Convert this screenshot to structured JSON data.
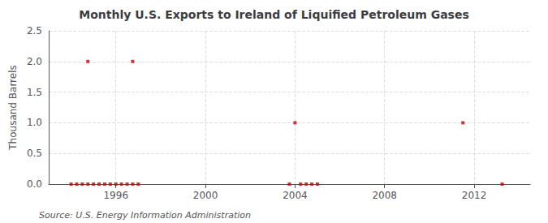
{
  "chart_data": {
    "type": "scatter",
    "title": "Monthly U.S. Exports to Ireland of Liquified Petroleum Gases",
    "ylabel": "Thousand Barrels",
    "annotation": "Source: U.S. Energy Information Administration",
    "x": [
      1994.75,
      1996.75,
      1994.0,
      1994.25,
      1994.5,
      1994.75,
      1995.0,
      1995.25,
      1995.5,
      1995.75,
      1996.0,
      1996.25,
      1996.5,
      1996.75,
      1997.0,
      2003.75,
      2004.0,
      2004.25,
      2004.5,
      2004.75,
      2005.0,
      2011.5,
      2013.25
    ],
    "values": [
      2.0,
      2.0,
      0.0,
      0.0,
      0.0,
      0.0,
      0.0,
      0.0,
      0.0,
      0.0,
      0.0,
      0.0,
      0.0,
      0.0,
      0.0,
      0.0,
      1.0,
      0.0,
      0.0,
      0.0,
      0.0,
      1.0,
      0.0
    ],
    "color": "#cc0000",
    "marker": "square",
    "xlim": [
      1993.0,
      2014.5
    ],
    "ylim": [
      0.0,
      2.5
    ],
    "xticks": [
      1996,
      2000,
      2004,
      2008,
      2012
    ],
    "yticks": [
      {
        "value": 0,
        "label": "0.0"
      },
      0.5,
      {
        "value": 1,
        "label": "1.0"
      },
      1.5,
      {
        "value": 2,
        "label": "2.0"
      },
      2.5
    ],
    "grid": true
  }
}
